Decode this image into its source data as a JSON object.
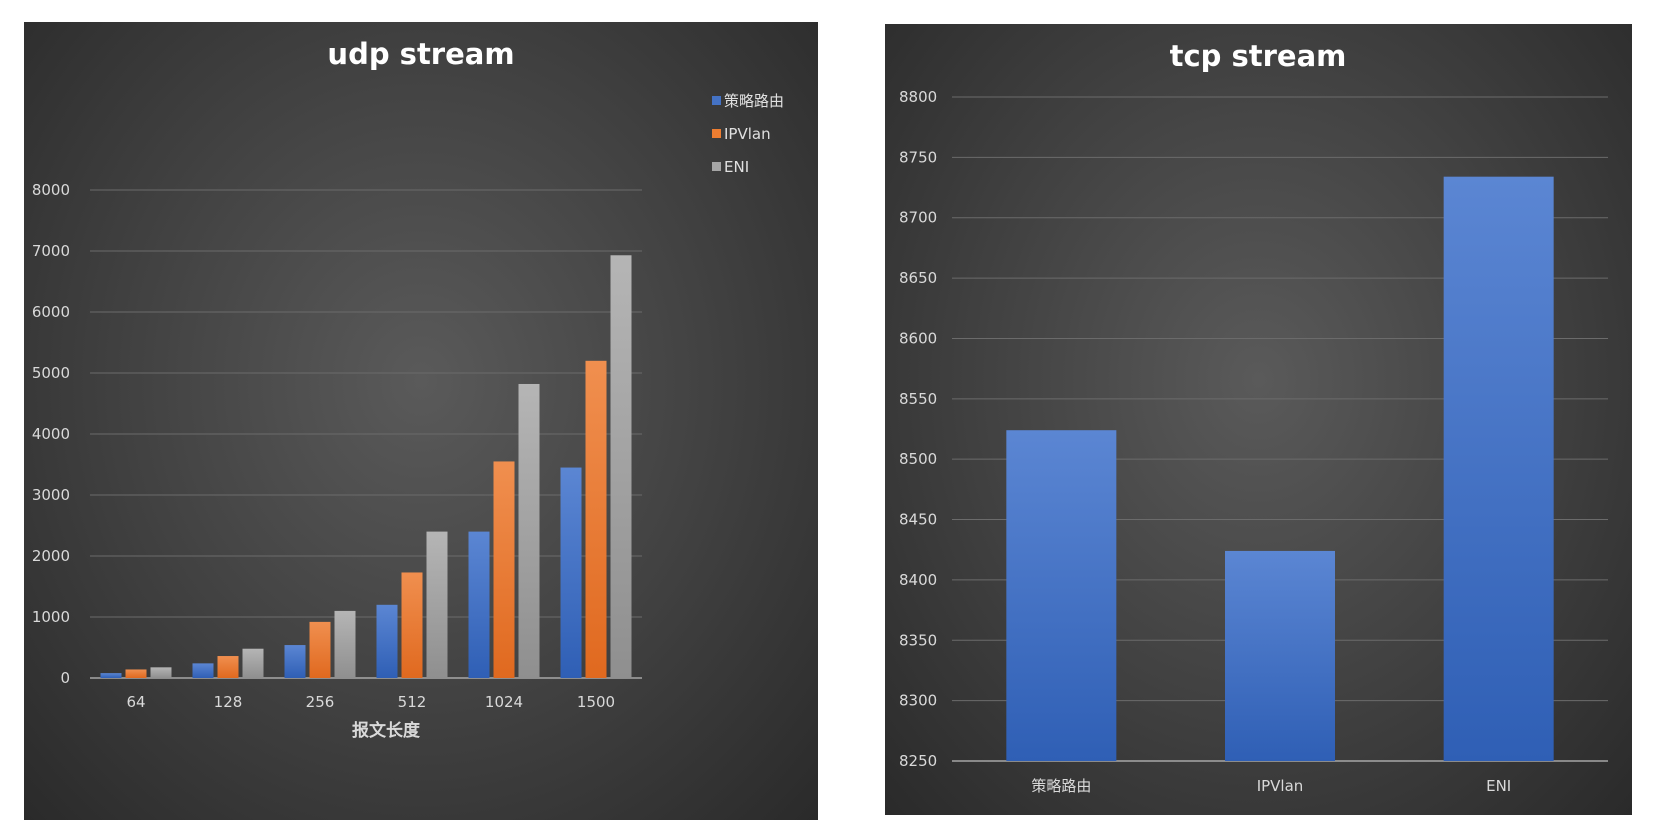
{
  "chart_data": [
    {
      "type": "bar",
      "title": "udp stream",
      "xlabel": "报文长度",
      "ylabel": "",
      "categories": [
        "64",
        "128",
        "256",
        "512",
        "1024",
        "1500"
      ],
      "series": [
        {
          "name": "策略路由",
          "color": "#4472c4",
          "values": [
            80,
            240,
            540,
            1200,
            2400,
            3450
          ]
        },
        {
          "name": "IPVlan",
          "color": "#ed7d31",
          "values": [
            140,
            360,
            920,
            1730,
            3550,
            5200
          ]
        },
        {
          "name": "ENI",
          "color": "#a5a5a5",
          "values": [
            175,
            480,
            1100,
            2400,
            4820,
            6930
          ]
        }
      ],
      "ylim": [
        0,
        8000
      ],
      "yticks": [
        "0",
        "1000",
        "2000",
        "3000",
        "4000",
        "5000",
        "6000",
        "7000",
        "8000"
      ],
      "grid": true,
      "legend": "top-right"
    },
    {
      "type": "bar",
      "title": "tcp stream",
      "xlabel": "",
      "ylabel": "",
      "categories": [
        "策略路由",
        "IPVlan",
        "ENI"
      ],
      "series": [
        {
          "color": "#4472c4",
          "values": [
            8524,
            8424,
            8734
          ]
        }
      ],
      "ylim": [
        8250,
        8800
      ],
      "yticks": [
        "8250",
        "8300",
        "8350",
        "8400",
        "8450",
        "8500",
        "8550",
        "8600",
        "8650",
        "8700",
        "8750",
        "8800"
      ],
      "grid": true,
      "legend": "none"
    }
  ]
}
